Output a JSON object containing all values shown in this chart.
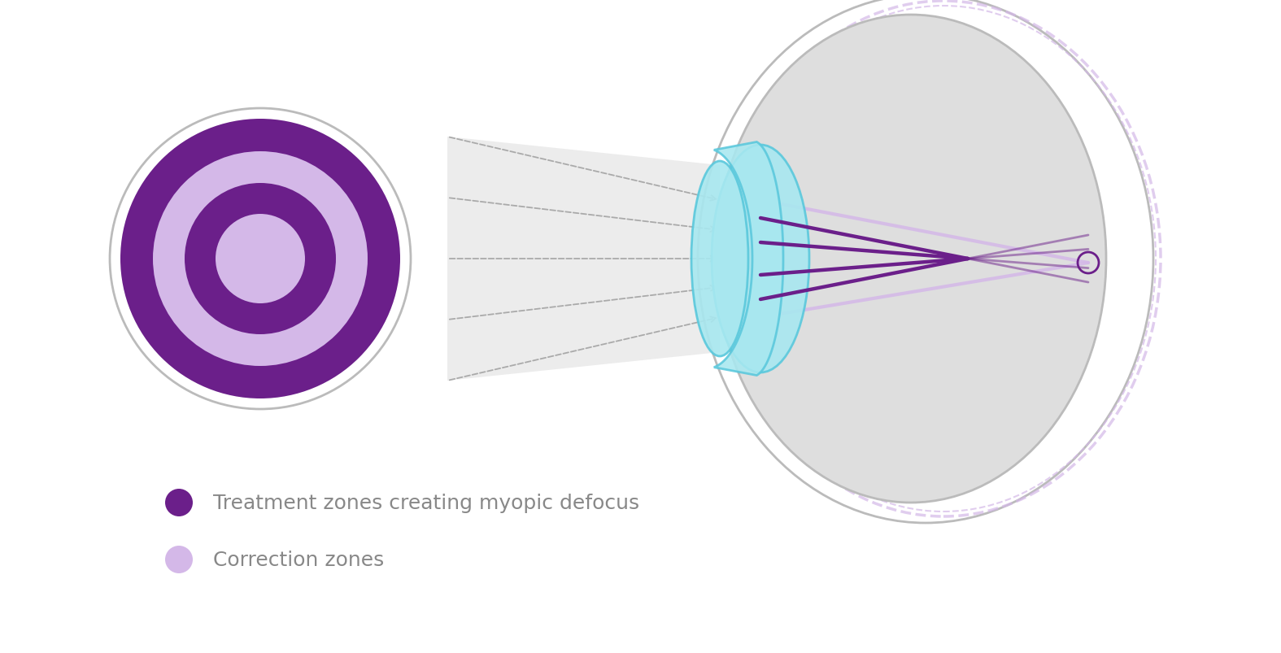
{
  "bg_color": "#ffffff",
  "purple_dark": "#6B1F8A",
  "purple_light": "#D4B8E8",
  "gray_outline": "#BBBBBB",
  "gray_outline2": "#AAAAAA",
  "eye_fill": "#DEDEDE",
  "lens_fill": "#A8E8F0",
  "lens_edge": "#5AC8DC",
  "lens_inner": "#7FDBEE",
  "arrow_color": "#AAAAAA",
  "legend_text_color": "#888888",
  "legend_label1": "Treatment zones creating myopic defocus",
  "legend_label2": "Correction zones",
  "text_font_size": 18
}
